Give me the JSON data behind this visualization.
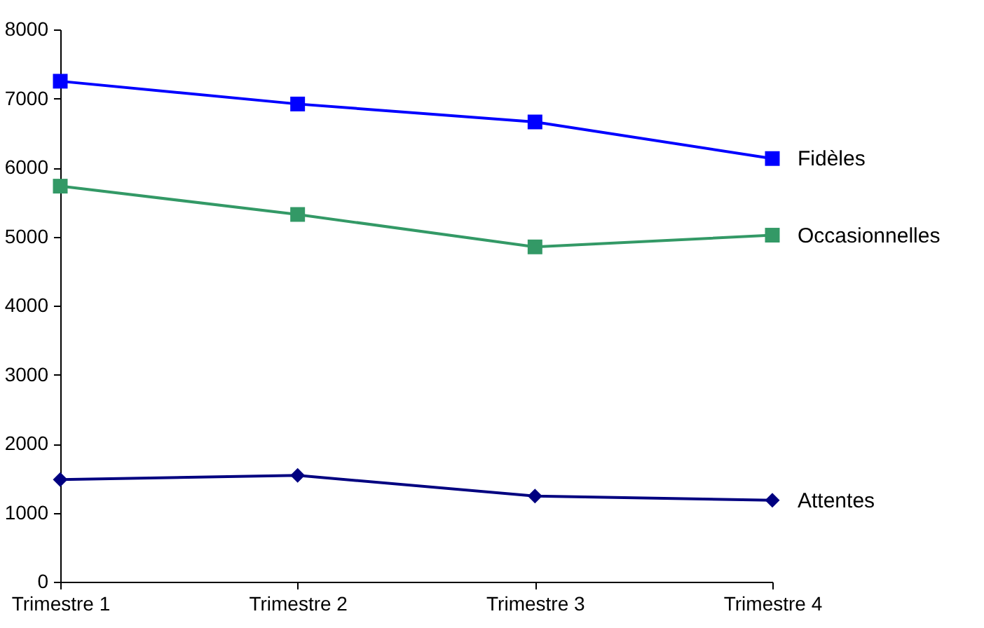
{
  "chart_data": {
    "type": "line",
    "categories": [
      "Trimestre 1",
      "Trimestre 2",
      "Trimestre 3",
      "Trimestre 4"
    ],
    "series": [
      {
        "name": "Fidèles",
        "color": "#0000ff",
        "marker": "square",
        "values": [
          7250,
          6920,
          6660,
          6130
        ]
      },
      {
        "name": "Occasionnelles",
        "color": "#339966",
        "marker": "square",
        "values": [
          5730,
          5320,
          4850,
          5020
        ]
      },
      {
        "name": "Attentes",
        "color": "#000080",
        "marker": "diamond",
        "values": [
          1480,
          1540,
          1240,
          1180
        ]
      }
    ],
    "ylim": [
      0,
      8000
    ],
    "yticks": [
      0,
      1000,
      2000,
      3000,
      4000,
      5000,
      6000,
      7000,
      8000
    ],
    "grid": false,
    "legend": false
  }
}
